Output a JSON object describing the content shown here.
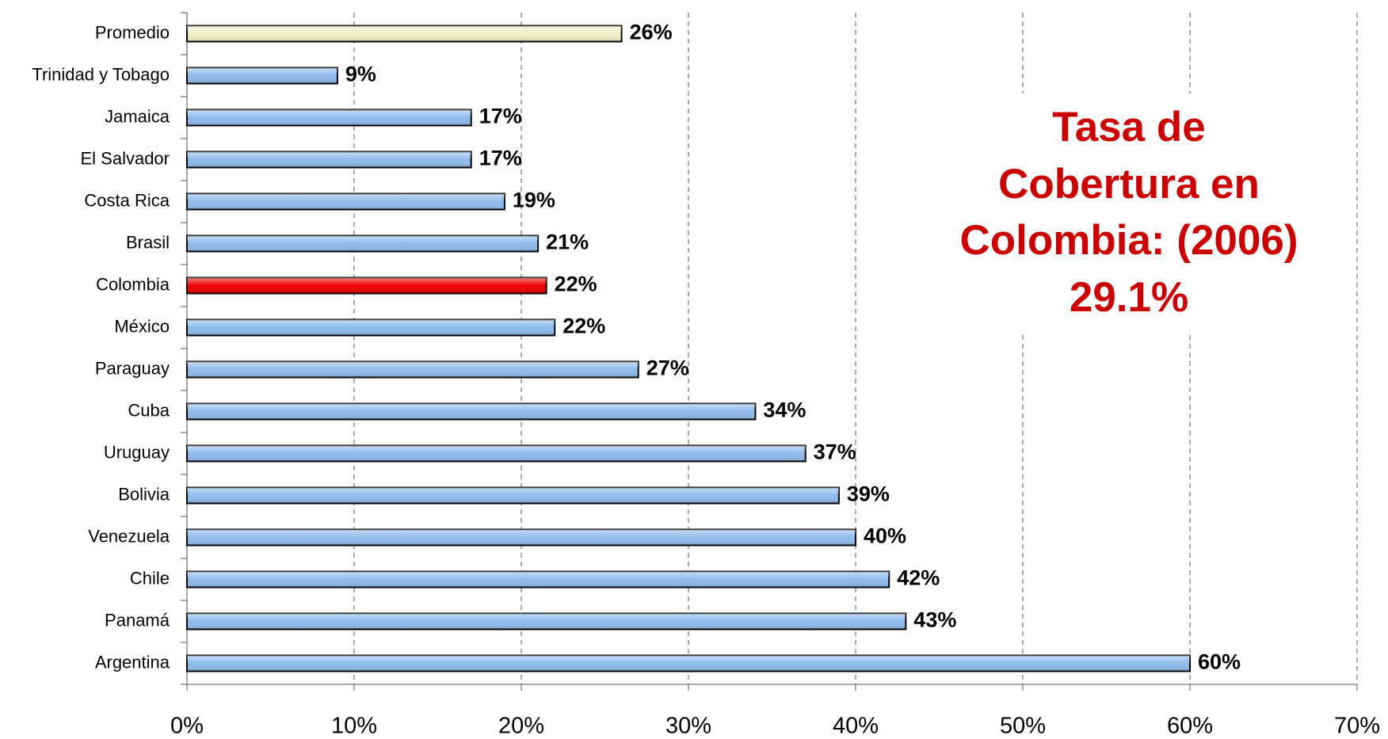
{
  "chart_data": {
    "type": "bar",
    "orientation": "horizontal",
    "categories": [
      "Promedio",
      "Trinidad y Tobago",
      "Jamaica",
      "El Salvador",
      "Costa Rica",
      "Brasil",
      "Colombia",
      "México",
      "Paraguay",
      "Cuba",
      "Uruguay",
      "Bolivia",
      "Venezuela",
      "Chile",
      "Panamá",
      "Argentina"
    ],
    "values": [
      26,
      9,
      17,
      17,
      19,
      21,
      21.5,
      22,
      27,
      34,
      37,
      39,
      40,
      42,
      43,
      60
    ],
    "value_labels": [
      "26%",
      "9%",
      "17%",
      "17%",
      "19%",
      "21%",
      "22%",
      "22%",
      "27%",
      "34%",
      "37%",
      "39%",
      "40%",
      "42%",
      "43%",
      "60%"
    ],
    "colors": [
      "#f0efc6",
      "#8fbbec",
      "#8fbbec",
      "#8fbbec",
      "#8fbbec",
      "#8fbbec",
      "#ee0000",
      "#8fbbec",
      "#8fbbec",
      "#8fbbec",
      "#8fbbec",
      "#8fbbec",
      "#8fbbec",
      "#8fbbec",
      "#8fbbec",
      "#8fbbec"
    ],
    "xlim": [
      0,
      70
    ],
    "xticks": [
      {
        "value": 0,
        "label": "0%"
      },
      {
        "value": 10,
        "label": "10%"
      },
      {
        "value": 20,
        "label": "20%"
      },
      {
        "value": 30,
        "label": "30%"
      },
      {
        "value": 40,
        "label": "40%"
      },
      {
        "value": 50,
        "label": "50%"
      },
      {
        "value": 60,
        "label": "60%"
      },
      {
        "value": 70,
        "label": "70%"
      }
    ],
    "grid": true,
    "annotation": [
      "Tasa de",
      "Cobertura en",
      "Colombia: (2006)",
      "29.1%"
    ],
    "annotation_color": "#cc0000"
  }
}
